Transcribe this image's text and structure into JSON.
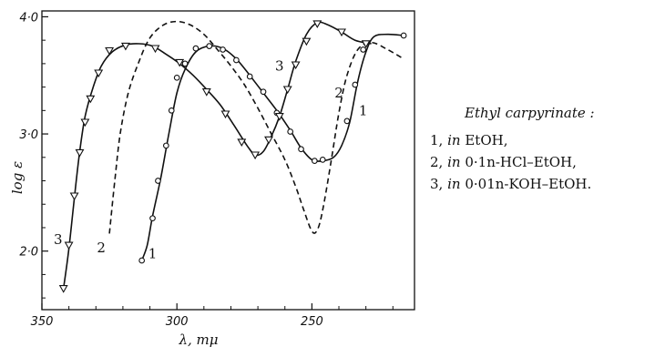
{
  "chart_data": {
    "type": "line",
    "title": "",
    "xlabel": "λ, mμ",
    "ylabel": "log ε",
    "xlim": [
      350,
      212
    ],
    "ylim": [
      1.5,
      4.05
    ],
    "x_reversed": true,
    "x_ticks": [
      350,
      300,
      250
    ],
    "x_tick_labels": [
      "350",
      "300",
      "250"
    ],
    "y_ticks": [
      2.0,
      3.0,
      4.0
    ],
    "y_tick_labels": [
      "2·0",
      "3·0",
      "4·0"
    ],
    "grid": false,
    "legend_placement": "right",
    "legend_title": "Ethyl carpyrinate :",
    "legend_entries": [
      {
        "num": "1,",
        "solvent": "in",
        "text": "EtOH,"
      },
      {
        "num": "2,",
        "solvent": "in",
        "text": "0·1n-HCl–EtOH,"
      },
      {
        "num": "3,",
        "solvent": "in",
        "text": "0·01n-KOH–EtOH."
      }
    ],
    "series": [
      {
        "name": "1",
        "label_text": "1",
        "label_at": [
          309,
          1.98
        ],
        "style": "solid",
        "marker": "circle",
        "line": [
          [
            313,
            1.92
          ],
          [
            311,
            2.05
          ],
          [
            309,
            2.3
          ],
          [
            306,
            2.62
          ],
          [
            303,
            3.0
          ],
          [
            300,
            3.35
          ],
          [
            297,
            3.55
          ],
          [
            293,
            3.7
          ],
          [
            288,
            3.75
          ],
          [
            283,
            3.73
          ],
          [
            278,
            3.64
          ],
          [
            273,
            3.5
          ],
          [
            268,
            3.35
          ],
          [
            263,
            3.2
          ],
          [
            258,
            3.03
          ],
          [
            254,
            2.88
          ],
          [
            250,
            2.78
          ],
          [
            246,
            2.77
          ],
          [
            242,
            2.8
          ],
          [
            239,
            2.9
          ],
          [
            236,
            3.1
          ],
          [
            233,
            3.45
          ],
          [
            230,
            3.7
          ],
          [
            227,
            3.83
          ],
          [
            222,
            3.85
          ],
          [
            216,
            3.84
          ]
        ],
        "markers": [
          [
            313,
            1.92
          ],
          [
            309,
            2.28
          ],
          [
            307,
            2.6
          ],
          [
            304,
            2.9
          ],
          [
            302,
            3.2
          ],
          [
            300,
            3.48
          ],
          [
            297,
            3.6
          ],
          [
            293,
            3.73
          ],
          [
            288,
            3.75
          ],
          [
            283,
            3.72
          ],
          [
            278,
            3.63
          ],
          [
            273,
            3.49
          ],
          [
            268,
            3.36
          ],
          [
            263,
            3.18
          ],
          [
            258,
            3.02
          ],
          [
            254,
            2.87
          ],
          [
            249,
            2.77
          ],
          [
            246,
            2.78
          ],
          [
            237,
            3.11
          ],
          [
            234,
            3.42
          ],
          [
            231,
            3.72
          ],
          [
            216,
            3.84
          ]
        ]
      },
      {
        "name": "2",
        "label_text": "2",
        "label_at": [
          328,
          2.03
        ],
        "style": "dashed",
        "marker": "none",
        "line": [
          [
            325,
            2.15
          ],
          [
            323,
            2.6
          ],
          [
            321,
            3.0
          ],
          [
            318,
            3.35
          ],
          [
            314,
            3.62
          ],
          [
            310,
            3.82
          ],
          [
            305,
            3.93
          ],
          [
            300,
            3.96
          ],
          [
            295,
            3.93
          ],
          [
            290,
            3.85
          ],
          [
            285,
            3.72
          ],
          [
            280,
            3.58
          ],
          [
            275,
            3.42
          ],
          [
            270,
            3.22
          ],
          [
            265,
            3.0
          ],
          [
            260,
            2.78
          ],
          [
            256,
            2.55
          ],
          [
            253,
            2.35
          ],
          [
            250,
            2.17
          ],
          [
            248,
            2.18
          ],
          [
            246,
            2.35
          ],
          [
            243,
            2.75
          ],
          [
            240,
            3.18
          ],
          [
            237,
            3.5
          ],
          [
            233,
            3.72
          ],
          [
            228,
            3.78
          ],
          [
            222,
            3.72
          ],
          [
            216,
            3.64
          ]
        ]
      },
      {
        "name": "3",
        "label_text": "3",
        "label_at": [
          344,
          2.1
        ],
        "style": "solid",
        "marker": "triangle",
        "line": [
          [
            342,
            1.68
          ],
          [
            340,
            2.02
          ],
          [
            338,
            2.45
          ],
          [
            336,
            2.85
          ],
          [
            334,
            3.15
          ],
          [
            331,
            3.4
          ],
          [
            328,
            3.58
          ],
          [
            324,
            3.7
          ],
          [
            319,
            3.76
          ],
          [
            314,
            3.77
          ],
          [
            309,
            3.75
          ],
          [
            304,
            3.68
          ],
          [
            299,
            3.6
          ],
          [
            294,
            3.5
          ],
          [
            289,
            3.38
          ],
          [
            284,
            3.25
          ],
          [
            279,
            3.08
          ],
          [
            274,
            2.9
          ],
          [
            271,
            2.82
          ],
          [
            268,
            2.85
          ],
          [
            265,
            2.98
          ],
          [
            262,
            3.15
          ],
          [
            259,
            3.38
          ],
          [
            256,
            3.62
          ],
          [
            252,
            3.85
          ],
          [
            248,
            3.95
          ],
          [
            244,
            3.93
          ],
          [
            239,
            3.87
          ],
          [
            234,
            3.8
          ],
          [
            228,
            3.77
          ]
        ],
        "markers": [
          [
            342,
            1.68
          ],
          [
            340,
            2.05
          ],
          [
            338,
            2.47
          ],
          [
            336,
            2.84
          ],
          [
            334,
            3.1
          ],
          [
            332,
            3.3
          ],
          [
            329,
            3.52
          ],
          [
            325,
            3.71
          ],
          [
            319,
            3.75
          ],
          [
            308,
            3.73
          ],
          [
            299,
            3.61
          ],
          [
            289,
            3.36
          ],
          [
            282,
            3.17
          ],
          [
            276,
            2.93
          ],
          [
            271,
            2.82
          ],
          [
            266,
            2.95
          ],
          [
            262,
            3.15
          ],
          [
            259,
            3.38
          ],
          [
            256,
            3.59
          ],
          [
            252,
            3.79
          ],
          [
            248,
            3.94
          ],
          [
            239,
            3.87
          ],
          [
            230,
            3.77
          ]
        ]
      }
    ]
  }
}
